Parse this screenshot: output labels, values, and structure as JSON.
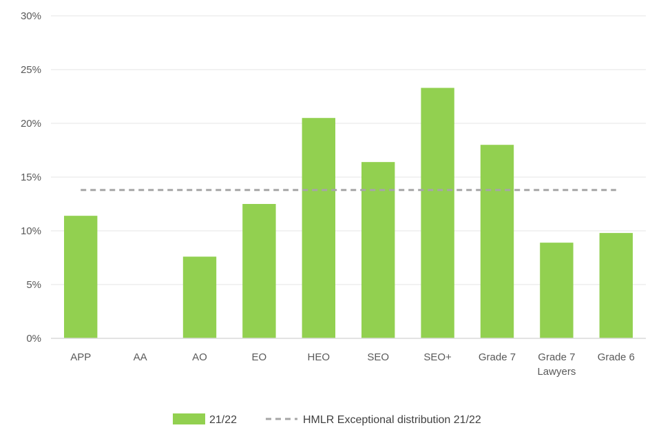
{
  "chart_data": {
    "type": "bar",
    "title": "",
    "xlabel": "",
    "ylabel": "",
    "categories": [
      [
        "APP"
      ],
      [
        "AA"
      ],
      [
        "AO"
      ],
      [
        "EO"
      ],
      [
        "HEO"
      ],
      [
        "SEO"
      ],
      [
        "SEO+"
      ],
      [
        "Grade 7"
      ],
      [
        "Grade 7",
        "Lawyers"
      ],
      [
        "Grade 6"
      ]
    ],
    "series": [
      {
        "name": "21/22",
        "values": [
          11.4,
          0,
          7.6,
          12.5,
          20.5,
          16.4,
          23.3,
          18.0,
          8.9,
          9.8
        ],
        "color": "#92d050"
      }
    ],
    "reference_line": {
      "name": "HMLR Exceptional distribution 21/22",
      "value": 13.8,
      "color": "#a6a6a6",
      "style": "dashed"
    },
    "ylim": [
      0,
      30
    ],
    "yticks": [
      "0%",
      "5%",
      "10%",
      "15%",
      "20%",
      "25%",
      "30%"
    ],
    "grid": true,
    "legend": "bottom"
  }
}
